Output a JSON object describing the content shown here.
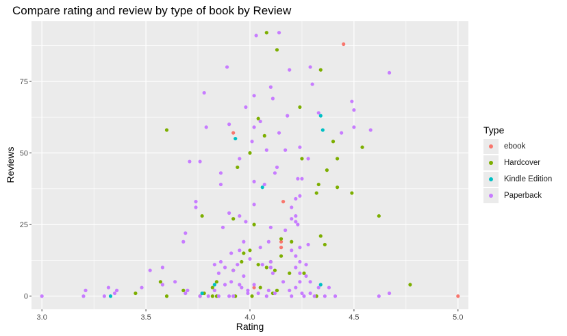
{
  "chart_data": {
    "type": "scatter",
    "title": "Compare rating and review by type of book by Review",
    "xlabel": "Rating",
    "ylabel": "Reviews",
    "xlim": [
      2.95,
      5.05
    ],
    "ylim": [
      -4.6,
      96
    ],
    "xticks": [
      "3.0",
      "3.5",
      "4.0",
      "4.5",
      "5.0"
    ],
    "yticks": [
      "0",
      "25",
      "50",
      "75"
    ],
    "grid": true,
    "legend": {
      "title": "Type",
      "placement": "right"
    },
    "series": [
      {
        "name": "ebook",
        "color": "#f8766d",
        "points": [
          [
            4.45,
            88
          ],
          [
            3.92,
            57
          ],
          [
            4.16,
            33
          ],
          [
            4.15,
            19
          ],
          [
            4.15,
            17
          ],
          [
            4.02,
            3
          ],
          [
            5.0,
            0
          ]
        ]
      },
      {
        "name": "Hardcover",
        "color": "#7cae00",
        "points": [
          [
            4.08,
            92
          ],
          [
            4.13,
            86
          ],
          [
            4.34,
            79
          ],
          [
            4.24,
            66
          ],
          [
            4.04,
            62
          ],
          [
            3.6,
            58
          ],
          [
            4.07,
            56
          ],
          [
            4.4,
            54
          ],
          [
            4.54,
            52
          ],
          [
            4.0,
            50
          ],
          [
            4.25,
            48
          ],
          [
            4.42,
            48
          ],
          [
            3.94,
            45
          ],
          [
            4.37,
            44
          ],
          [
            4.33,
            39
          ],
          [
            4.42,
            38
          ],
          [
            4.49,
            36
          ],
          [
            4.32,
            36
          ],
          [
            4.62,
            28
          ],
          [
            3.77,
            28
          ],
          [
            3.92,
            27
          ],
          [
            4.02,
            25
          ],
          [
            4.34,
            21
          ],
          [
            4.36,
            18
          ],
          [
            4.15,
            20
          ],
          [
            4.2,
            19
          ],
          [
            4.0,
            16
          ],
          [
            4.15,
            14
          ],
          [
            4.1,
            12
          ],
          [
            3.97,
            15
          ],
          [
            3.96,
            12
          ],
          [
            4.04,
            11
          ],
          [
            4.08,
            10
          ],
          [
            4.12,
            9
          ],
          [
            3.92,
            9
          ],
          [
            4.19,
            8
          ],
          [
            4.26,
            8
          ],
          [
            3.84,
            5
          ],
          [
            3.57,
            5
          ],
          [
            4.77,
            4
          ],
          [
            3.82,
            3
          ],
          [
            4.05,
            3
          ],
          [
            4.13,
            2
          ],
          [
            3.68,
            2
          ],
          [
            3.45,
            1
          ],
          [
            3.78,
            1
          ],
          [
            3.84,
            0
          ],
          [
            3.6,
            0
          ],
          [
            3.82,
            0
          ],
          [
            4.01,
            0
          ],
          [
            4.32,
            0
          ],
          [
            4.11,
            1
          ],
          [
            3.76,
            0
          ],
          [
            3.93,
            0
          ]
        ]
      },
      {
        "name": "Kindle Edition",
        "color": "#00bfc4",
        "points": [
          [
            4.34,
            63
          ],
          [
            4.35,
            58
          ],
          [
            3.93,
            55
          ],
          [
            4.06,
            38
          ],
          [
            3.83,
            4
          ],
          [
            4.34,
            4
          ],
          [
            3.33,
            0
          ],
          [
            3.77,
            1
          ]
        ]
      },
      {
        "name": "Paperback",
        "color": "#c77cff",
        "points": [
          [
            4.03,
            91
          ],
          [
            4.14,
            92
          ],
          [
            3.89,
            80
          ],
          [
            4.19,
            79
          ],
          [
            4.29,
            80
          ],
          [
            4.3,
            74
          ],
          [
            4.1,
            73
          ],
          [
            4.67,
            78
          ],
          [
            3.78,
            71
          ],
          [
            4.02,
            70
          ],
          [
            4.11,
            69
          ],
          [
            4.49,
            68
          ],
          [
            3.98,
            66
          ],
          [
            4.5,
            65
          ],
          [
            4.18,
            63
          ],
          [
            4.33,
            64
          ],
          [
            4.05,
            61
          ],
          [
            3.9,
            60
          ],
          [
            4.02,
            59
          ],
          [
            3.79,
            59
          ],
          [
            4.5,
            59
          ],
          [
            4.44,
            57
          ],
          [
            4.58,
            58
          ],
          [
            4.14,
            57
          ],
          [
            4.01,
            54
          ],
          [
            4.24,
            52
          ],
          [
            4.08,
            51
          ],
          [
            4.17,
            51
          ],
          [
            3.71,
            47
          ],
          [
            3.76,
            47
          ],
          [
            3.95,
            48
          ],
          [
            4.28,
            48
          ],
          [
            4.13,
            45
          ],
          [
            3.86,
            43
          ],
          [
            4.12,
            43
          ],
          [
            4.02,
            40
          ],
          [
            3.86,
            39
          ],
          [
            4.23,
            41
          ],
          [
            4.25,
            41
          ],
          [
            4.07,
            39
          ],
          [
            3.74,
            33
          ],
          [
            4.24,
            35
          ],
          [
            4.22,
            34
          ],
          [
            4.02,
            32
          ],
          [
            3.74,
            31
          ],
          [
            4.2,
            31
          ],
          [
            3.9,
            29
          ],
          [
            3.95,
            28
          ],
          [
            4.22,
            28
          ],
          [
            4.2,
            27
          ],
          [
            4.22,
            26
          ],
          [
            4.23,
            25
          ],
          [
            3.98,
            26
          ],
          [
            3.87,
            24
          ],
          [
            4.1,
            24
          ],
          [
            3.69,
            22
          ],
          [
            4.17,
            23
          ],
          [
            3.68,
            19
          ],
          [
            4.09,
            19
          ],
          [
            4.05,
            17
          ],
          [
            3.95,
            16
          ],
          [
            3.97,
            19
          ],
          [
            4.24,
            17
          ],
          [
            4.2,
            16
          ],
          [
            4.28,
            18
          ],
          [
            3.91,
            15
          ],
          [
            4.0,
            13
          ],
          [
            3.86,
            12
          ],
          [
            4.1,
            12
          ],
          [
            4.22,
            14
          ],
          [
            4.24,
            12
          ],
          [
            3.83,
            11
          ],
          [
            3.88,
            10
          ],
          [
            3.94,
            11
          ],
          [
            4.06,
            11
          ],
          [
            4.1,
            10
          ],
          [
            4.22,
            10
          ],
          [
            4.27,
            11
          ],
          [
            3.92,
            9
          ],
          [
            3.52,
            9
          ],
          [
            3.58,
            10
          ],
          [
            4.11,
            8
          ],
          [
            4.24,
            8
          ],
          [
            4.27,
            7
          ],
          [
            3.97,
            7
          ],
          [
            3.85,
            8
          ],
          [
            4.16,
            5
          ],
          [
            4.24,
            5
          ],
          [
            4.29,
            5
          ],
          [
            3.58,
            4
          ],
          [
            3.88,
            4
          ],
          [
            4.02,
            4
          ],
          [
            3.48,
            3
          ],
          [
            3.64,
            5
          ],
          [
            3.91,
            5
          ],
          [
            3.95,
            4
          ],
          [
            4.22,
            3
          ],
          [
            3.21,
            2
          ],
          [
            3.36,
            2
          ],
          [
            3.32,
            3
          ],
          [
            3.7,
            2
          ],
          [
            3.83,
            2
          ],
          [
            3.96,
            3
          ],
          [
            3.99,
            2
          ],
          [
            4.09,
            2
          ],
          [
            4.19,
            2
          ],
          [
            4.33,
            3
          ],
          [
            4.38,
            3
          ],
          [
            4.29,
            1
          ],
          [
            3.35,
            1
          ],
          [
            3.69,
            1
          ],
          [
            3.76,
            0
          ],
          [
            3.85,
            0
          ],
          [
            3.9,
            0
          ],
          [
            3.92,
            0
          ],
          [
            3.99,
            1
          ],
          [
            4.04,
            1
          ],
          [
            4.08,
            0
          ],
          [
            4.12,
            1
          ],
          [
            4.2,
            0
          ],
          [
            4.25,
            1
          ],
          [
            4.31,
            0
          ],
          [
            4.36,
            0
          ],
          [
            4.41,
            0
          ],
          [
            4.62,
            0
          ],
          [
            4.67,
            1
          ],
          [
            3.0,
            0
          ],
          [
            3.2,
            0
          ],
          [
            3.3,
            0
          ],
          [
            3.8,
            0
          ],
          [
            4.26,
            0
          ]
        ]
      }
    ]
  }
}
